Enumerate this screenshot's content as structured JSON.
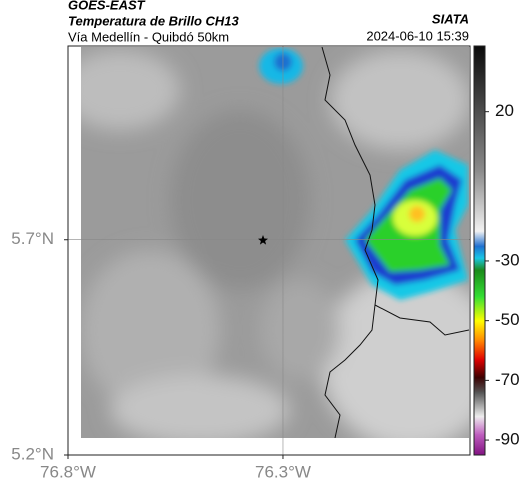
{
  "header": {
    "source": "GOES-EAST",
    "title": "Temperatura de Brillo CH13",
    "subtitle": "Vía Medellín - Quibdó 50km",
    "brand": "SIATA",
    "timestamp": "2024-06-10 15:39"
  },
  "map": {
    "xlim": [
      -76.8,
      -75.865
    ],
    "ylim": [
      5.2,
      6.15
    ],
    "xticks": [
      {
        "value": -76.8,
        "label": "76.8°W"
      },
      {
        "value": -76.3,
        "label": "76.3°W"
      }
    ],
    "yticks": [
      {
        "value": 5.2,
        "label": "5.2°N"
      },
      {
        "value": 5.7,
        "label": "5.7°N"
      }
    ],
    "grid": true
  },
  "colorbar": {
    "lim": [
      -95,
      42
    ],
    "ticks": [
      20,
      -30,
      -50,
      -70,
      -90
    ],
    "stops": [
      {
        "value": 42,
        "color": "#0a0a0a"
      },
      {
        "value": 0,
        "color": "#8c8c8c"
      },
      {
        "value": -20,
        "color": "#f2f2f2"
      },
      {
        "value": -25,
        "color": "#1e6fd0"
      },
      {
        "value": -29,
        "color": "#19c8e6"
      },
      {
        "value": -33,
        "color": "#1a8a1a"
      },
      {
        "value": -42,
        "color": "#34e034"
      },
      {
        "value": -50,
        "color": "#ffff00"
      },
      {
        "value": -57,
        "color": "#ff8000"
      },
      {
        "value": -63,
        "color": "#e00000"
      },
      {
        "value": -69,
        "color": "#3a0000"
      },
      {
        "value": -74,
        "color": "#555555"
      },
      {
        "value": -82,
        "color": "#eeeeee"
      },
      {
        "value": -88,
        "color": "#c060c0"
      },
      {
        "value": -95,
        "color": "#801080"
      }
    ]
  }
}
